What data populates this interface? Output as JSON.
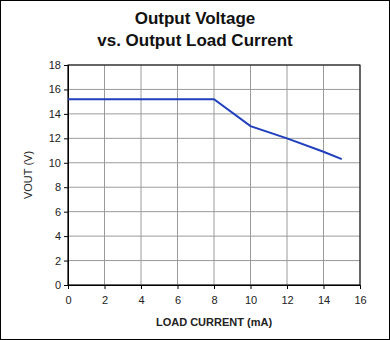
{
  "chart_data": {
    "type": "line",
    "title": "Output Voltage",
    "subtitle": "vs. Output Load Current",
    "x_label": "LOAD CURRENT (mA)",
    "y_label": "VOUT (V)",
    "x": [
      0,
      8,
      10,
      12,
      14,
      15
    ],
    "values": [
      15.2,
      15.2,
      13.0,
      12.0,
      10.9,
      10.3
    ],
    "color": "#1f3fbf",
    "xlim": [
      0,
      16
    ],
    "xticks": [
      0,
      2,
      4,
      6,
      8,
      10,
      12,
      14,
      16
    ],
    "ylim": [
      0,
      18
    ],
    "yticks": [
      0,
      2,
      4,
      6,
      8,
      10,
      12,
      14,
      16,
      18
    ],
    "grid": true
  }
}
